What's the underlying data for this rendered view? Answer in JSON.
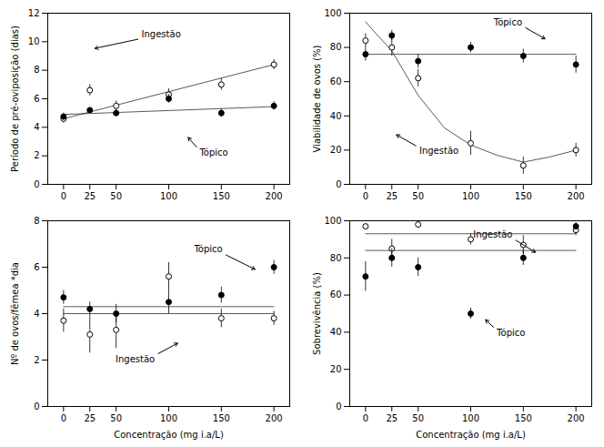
{
  "chart_data": [
    {
      "type": "scatter",
      "ylabel": "Período de pré-oviposição (dias)",
      "x": [
        0,
        25,
        50,
        100,
        150,
        200
      ],
      "xlim": [
        -15,
        215
      ],
      "xticks": [
        0,
        25,
        50,
        100,
        150,
        200
      ],
      "ylim": [
        0,
        12
      ],
      "yticks": [
        0,
        2,
        4,
        6,
        8,
        10,
        12
      ],
      "series": [
        {
          "name": "Ingestão",
          "color": "black",
          "marker": "open_circle",
          "values": [
            4.6,
            6.6,
            5.5,
            6.3,
            7.0,
            8.4
          ],
          "errors": [
            0.3,
            0.4,
            0.35,
            0.4,
            0.4,
            0.35
          ],
          "fit": {
            "x": [
              0,
              200
            ],
            "y": [
              4.6,
              8.4
            ]
          }
        },
        {
          "name": "Tópico",
          "color": "black",
          "marker": "filled_circle",
          "values": [
            4.75,
            5.2,
            5.0,
            6.0,
            5.0,
            5.5
          ],
          "errors": [
            0.25,
            0.2,
            0.25,
            0.3,
            0.3,
            0.3
          ],
          "fit": {
            "x": [
              0,
              200
            ],
            "y": [
              4.9,
              5.45
            ]
          }
        }
      ],
      "annotations": [
        {
          "text": "Ingestão"
        },
        {
          "text": "Tópico"
        }
      ]
    },
    {
      "type": "scatter",
      "ylabel": "Viabilidade de ovos (%)",
      "x": [
        0,
        25,
        50,
        100,
        150,
        200
      ],
      "xlim": [
        -15,
        215
      ],
      "xticks": [
        0,
        25,
        50,
        100,
        150,
        200
      ],
      "ylim": [
        0,
        100
      ],
      "yticks": [
        0,
        20,
        40,
        60,
        80,
        100
      ],
      "series": [
        {
          "name": "Ingestão",
          "color": "black",
          "marker": "open_circle",
          "values": [
            84,
            80,
            62,
            24,
            11,
            20
          ],
          "errors": [
            4,
            5,
            5,
            7,
            5,
            4
          ],
          "fit": {
            "x": [
              0,
              10,
              25,
              50,
              75,
              100,
              125,
              150,
              175,
              200
            ],
            "y": [
              95,
              88,
              78,
              52,
              33,
              23,
              17,
              13,
              16,
              20
            ]
          }
        },
        {
          "name": "Tópico",
          "color": "black",
          "marker": "filled_circle",
          "values": [
            76,
            87,
            72,
            80,
            75,
            70
          ],
          "errors": [
            4,
            3,
            4,
            3,
            4,
            5
          ],
          "fit": {
            "x": [
              0,
              200
            ],
            "y": [
              76,
              76
            ]
          }
        }
      ],
      "annotations": [
        {
          "text": "Tópico"
        },
        {
          "text": "Ingestão"
        }
      ]
    },
    {
      "type": "scatter",
      "ylabel": "Nº de ovos/fêmea *dia",
      "xlabel": "Concentração (mg i.a/L)",
      "x": [
        0,
        25,
        50,
        100,
        150,
        200
      ],
      "xlim": [
        -15,
        215
      ],
      "xticks": [
        0,
        25,
        50,
        100,
        150,
        200
      ],
      "ylim": [
        0,
        8
      ],
      "yticks": [
        0,
        2,
        4,
        6,
        8
      ],
      "series": [
        {
          "name": "Ingestão",
          "color": "black",
          "marker": "open_circle",
          "values": [
            3.7,
            3.1,
            3.3,
            5.6,
            3.8,
            3.8
          ],
          "errors": [
            0.5,
            0.8,
            0.8,
            0.6,
            0.4,
            0.3
          ],
          "fit": {
            "x": [
              0,
              200
            ],
            "y": [
              4.0,
              4.0
            ]
          }
        },
        {
          "name": "Tópico",
          "color": "black",
          "marker": "filled_circle",
          "values": [
            4.7,
            4.2,
            4.0,
            4.5,
            4.8,
            6.0
          ],
          "errors": [
            0.3,
            0.3,
            0.4,
            0.5,
            0.35,
            0.3
          ],
          "fit": {
            "x": [
              0,
              200
            ],
            "y": [
              4.3,
              4.3
            ]
          }
        }
      ],
      "annotations": [
        {
          "text": "Tópico"
        },
        {
          "text": "Ingestão"
        }
      ]
    },
    {
      "type": "scatter",
      "ylabel": "Sobrevivência (%)",
      "xlabel": "Concentração (mg i.a/L)",
      "x": [
        0,
        25,
        50,
        100,
        150,
        200
      ],
      "xlim": [
        -15,
        215
      ],
      "xticks": [
        0,
        25,
        50,
        100,
        150,
        200
      ],
      "ylim": [
        0,
        100
      ],
      "yticks": [
        0,
        20,
        40,
        60,
        80,
        100
      ],
      "series": [
        {
          "name": "Ingestão",
          "color": "black",
          "marker": "open_circle",
          "values": [
            97,
            85,
            98,
            90,
            87,
            95
          ],
          "errors": [
            1,
            5,
            2,
            3,
            5,
            3
          ],
          "fit": {
            "x": [
              0,
              200
            ],
            "y": [
              93,
              93
            ]
          }
        },
        {
          "name": "Tópico",
          "color": "black",
          "marker": "filled_circle",
          "values": [
            70,
            80,
            75,
            50,
            80,
            97
          ],
          "errors": [
            8,
            5,
            5,
            3,
            4,
            2
          ],
          "fit": {
            "x": [
              0,
              200
            ],
            "y": [
              84,
              84
            ]
          }
        }
      ],
      "annotations": [
        {
          "text": "Tópico"
        },
        {
          "text": "Ingestão"
        }
      ]
    }
  ]
}
